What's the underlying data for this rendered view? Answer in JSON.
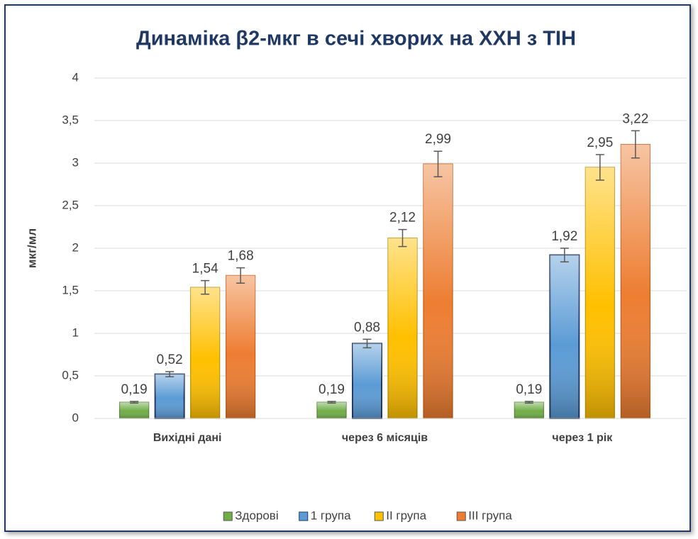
{
  "chart_data": {
    "type": "bar",
    "title": "Динаміка β2-мкг в сечі хворих на ХХН з ТІН",
    "y_label": "мкг/мл",
    "categories": [
      "Вихідні дані",
      "через 6 місяців",
      "через 1 рік"
    ],
    "series": [
      {
        "name": "Здорові",
        "color": "#70ad47",
        "values": [
          0.19,
          0.19,
          0.19
        ],
        "value_labels": [
          "0,19",
          "0,19",
          "0,19"
        ],
        "errors": [
          0.01,
          0.01,
          0.01
        ]
      },
      {
        "name": "1 група",
        "color": "#5b9bd5",
        "values": [
          0.52,
          0.88,
          1.92
        ],
        "value_labels": [
          "0,52",
          "0,88",
          "1,92"
        ],
        "errors": [
          0.03,
          0.05,
          0.08
        ]
      },
      {
        "name": "II група",
        "color": "#ffc000",
        "values": [
          1.54,
          2.12,
          2.95
        ],
        "value_labels": [
          "1,54",
          "2,12",
          "2,95"
        ],
        "errors": [
          0.08,
          0.1,
          0.15
        ]
      },
      {
        "name": "III група",
        "color": "#ed7d31",
        "values": [
          1.68,
          2.99,
          3.22
        ],
        "value_labels": [
          "1,68",
          "2,99",
          "3,22"
        ],
        "errors": [
          0.09,
          0.15,
          0.16
        ]
      }
    ],
    "ylim": [
      0,
      4
    ],
    "yticks": [
      0,
      {
        "value": 0.5,
        "label": "0,5"
      },
      1,
      {
        "value": 1.5,
        "label": "1,5"
      },
      2,
      {
        "value": 2.5,
        "label": "2,5"
      },
      3,
      {
        "value": 3.5,
        "label": "3,5"
      },
      4
    ],
    "grid": true,
    "legend": "bottom"
  }
}
